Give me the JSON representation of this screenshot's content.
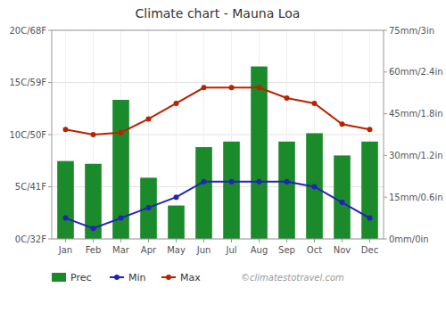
{
  "chart_data": {
    "type": "bar",
    "title": "Climate chart - Mauna Loa",
    "categories": [
      "Jan",
      "Feb",
      "Mar",
      "Apr",
      "May",
      "Jun",
      "Jul",
      "Aug",
      "Sep",
      "Oct",
      "Nov",
      "Dec"
    ],
    "series": [
      {
        "name": "Prec",
        "type": "bar",
        "axis": "y2",
        "color": "#1a8a2a",
        "values": [
          28,
          27,
          50,
          22,
          12,
          33,
          35,
          62,
          35,
          38,
          30,
          35
        ]
      },
      {
        "name": "Min",
        "type": "line",
        "marker": "circle",
        "color": "#2222bb",
        "values": [
          2.0,
          1.0,
          2.0,
          3.0,
          4.0,
          5.5,
          5.5,
          5.5,
          5.5,
          5.0,
          3.5,
          2.0
        ]
      },
      {
        "name": "Max",
        "type": "line",
        "marker": "circle",
        "color": "#bb2200",
        "values": [
          10.5,
          10.0,
          10.2,
          11.5,
          13.0,
          14.5,
          14.5,
          14.5,
          13.5,
          13.0,
          11.0,
          10.5
        ]
      }
    ],
    "ylim": [
      0,
      20
    ],
    "yticks": [
      {
        "value": 0,
        "label": "0C/32F"
      },
      {
        "value": 5,
        "label": "5C/41F"
      },
      {
        "value": 10,
        "label": "10C/50F"
      },
      {
        "value": 15,
        "label": "15C/59F"
      },
      {
        "value": 20,
        "label": "20C/68F"
      }
    ],
    "y2lim": [
      0,
      75
    ],
    "y2ticks": [
      {
        "value": 0,
        "label": "0mm/0in"
      },
      {
        "value": 15,
        "label": "15mm/0.6in"
      },
      {
        "value": 30,
        "label": "30mm/1.2in"
      },
      {
        "value": 45,
        "label": "45mm/1.8in"
      },
      {
        "value": 60,
        "label": "60mm/2.4in"
      },
      {
        "value": 75,
        "label": "75mm/3in"
      }
    ],
    "grid": true,
    "legend": "bottom",
    "annotations": [
      "©climatestotravel.com"
    ]
  }
}
